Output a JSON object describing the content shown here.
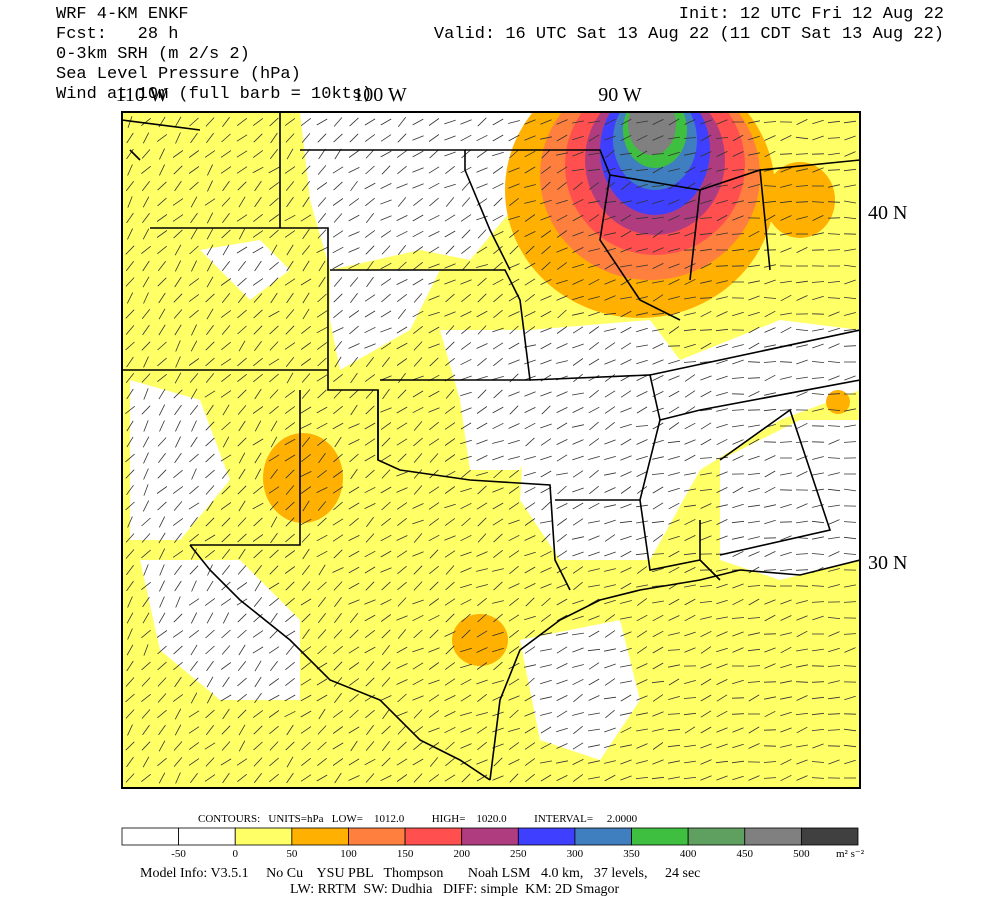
{
  "header": {
    "left": [
      "WRF 4-KM ENKF",
      "Fcst:   28 h",
      "0-3km SRH (m 2/s 2)",
      "Sea Level Pressure (hPa)",
      "Wind at 10m (full barb = 10kts)"
    ],
    "right": [
      "Init: 12 UTC Fri 12 Aug 22",
      "Valid: 16 UTC Sat 13 Aug 22 (11 CDT Sat 13 Aug 22)"
    ]
  },
  "map": {
    "longitude_labels": [
      "110 W",
      "100 W",
      "90 W"
    ],
    "latitude_labels": [
      "40 N",
      "30 N"
    ]
  },
  "contours": "CONTOURS:   UNITS=hPa   LOW=    1012.0          HIGH=    1020.0          INTERVAL=     2.0000",
  "colorbar": {
    "colors": [
      "#ffffff",
      "#ffffff",
      "#ffff66",
      "#ffb000",
      "#ff7f3f",
      "#ff4f4f",
      "#b03c80",
      "#3f3fff",
      "#3f7fbf",
      "#3fbf3f",
      "#5f9f5f",
      "#808080",
      "#404040"
    ],
    "labels": [
      -50,
      0,
      50,
      100,
      150,
      200,
      250,
      300,
      350,
      400,
      450,
      500
    ],
    "unit": "m² s⁻²"
  },
  "footer": [
    "Model Info: V3.5.1     No Cu    YSU PBL   Thompson       Noah LSM   4.0 km,   37 levels,     24 sec",
    "LW: RRTM  SW: Dudhia   DIFF: simple  KM: 2D Smagor"
  ]
}
